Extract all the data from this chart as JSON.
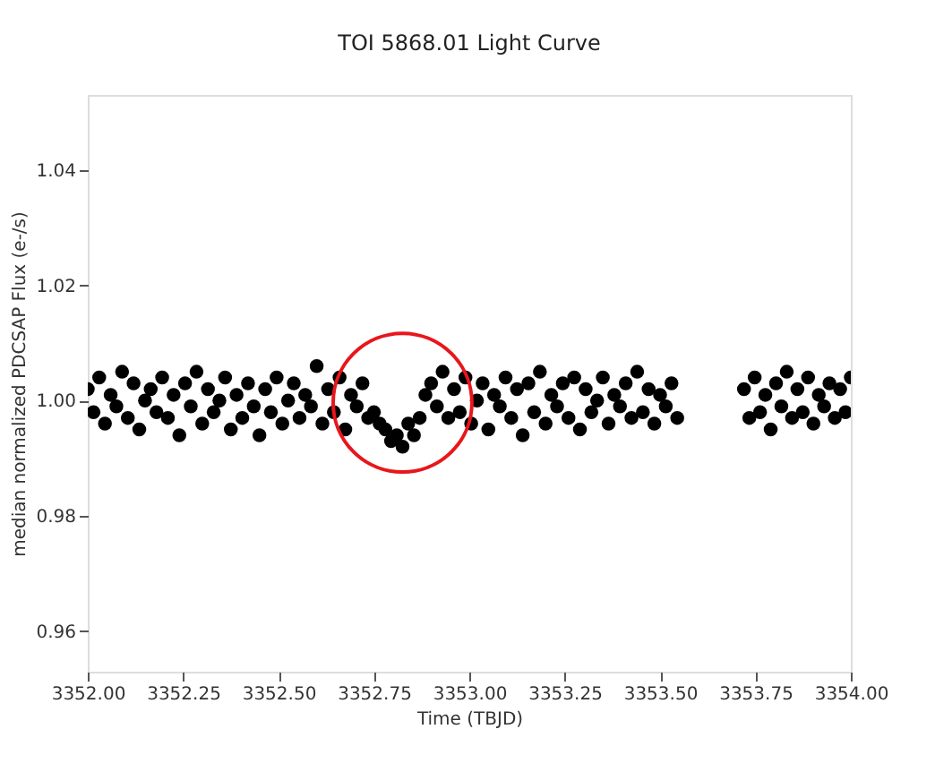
{
  "chart_data": {
    "type": "scatter",
    "title": "TOI 5868.01 Light Curve",
    "xlabel": "Time (TBJD)",
    "ylabel": "median normalized PDCSAP Flux (e-/s)",
    "series": [
      {
        "color": "#000000",
        "x": [
          3352.0,
          3352.015,
          3352.03,
          3352.045,
          3352.06,
          3352.075,
          3352.09,
          3352.105,
          3352.12,
          3352.135,
          3352.15,
          3352.165,
          3352.18,
          3352.195,
          3352.21,
          3352.225,
          3352.24,
          3352.255,
          3352.27,
          3352.285,
          3352.3,
          3352.315,
          3352.33,
          3352.345,
          3352.36,
          3352.375,
          3352.39,
          3352.405,
          3352.42,
          3352.435,
          3352.45,
          3352.465,
          3352.48,
          3352.495,
          3352.51,
          3352.525,
          3352.54,
          3352.555,
          3352.57,
          3352.585,
          3352.6,
          3352.615,
          3352.63,
          3352.645,
          3352.66,
          3352.675,
          3352.69,
          3352.705,
          3352.72,
          3352.735,
          3352.75,
          3352.765,
          3352.78,
          3352.795,
          3352.81,
          3352.825,
          3352.84,
          3352.855,
          3352.87,
          3352.885,
          3352.9,
          3352.915,
          3352.93,
          3352.945,
          3352.96,
          3352.975,
          3352.99,
          3353.005,
          3353.02,
          3353.035,
          3353.05,
          3353.065,
          3353.08,
          3353.095,
          3353.11,
          3353.125,
          3353.14,
          3353.155,
          3353.17,
          3353.185,
          3353.2,
          3353.215,
          3353.23,
          3353.245,
          3353.26,
          3353.275,
          3353.29,
          3353.305,
          3353.32,
          3353.335,
          3353.35,
          3353.365,
          3353.38,
          3353.395,
          3353.41,
          3353.425,
          3353.44,
          3353.455,
          3353.47,
          3353.485,
          3353.5,
          3353.515,
          3353.53,
          3353.545,
          3353.72,
          3353.734,
          3353.748,
          3353.762,
          3353.776,
          3353.79,
          3353.804,
          3353.818,
          3353.832,
          3353.846,
          3353.86,
          3353.874,
          3353.888,
          3353.902,
          3353.916,
          3353.93,
          3353.944,
          3353.958,
          3353.972,
          3353.986,
          3354.0
        ],
        "values": [
          1.002,
          0.998,
          1.004,
          0.996,
          1.001,
          0.999,
          1.005,
          0.997,
          1.003,
          0.995,
          1.0,
          1.002,
          0.998,
          1.004,
          0.997,
          1.001,
          0.994,
          1.003,
          0.999,
          1.005,
          0.996,
          1.002,
          0.998,
          1.0,
          1.004,
          0.995,
          1.001,
          0.997,
          1.003,
          0.999,
          0.994,
          1.002,
          0.998,
          1.004,
          0.996,
          1.0,
          1.003,
          0.997,
          1.001,
          0.999,
          1.006,
          0.996,
          1.002,
          0.998,
          1.004,
          0.995,
          1.001,
          0.999,
          1.003,
          0.997,
          0.998,
          0.996,
          0.995,
          0.993,
          0.994,
          0.992,
          0.996,
          0.994,
          0.997,
          1.001,
          1.003,
          0.999,
          1.005,
          0.997,
          1.002,
          0.998,
          1.004,
          0.996,
          1.0,
          1.003,
          0.995,
          1.001,
          0.999,
          1.004,
          0.997,
          1.002,
          0.994,
          1.003,
          0.998,
          1.005,
          0.996,
          1.001,
          0.999,
          1.003,
          0.997,
          1.004,
          0.995,
          1.002,
          0.998,
          1.0,
          1.004,
          0.996,
          1.001,
          0.999,
          1.003,
          0.997,
          1.005,
          0.998,
          1.002,
          0.996,
          1.001,
          0.999,
          1.003,
          0.997,
          1.002,
          0.997,
          1.004,
          0.998,
          1.001,
          0.995,
          1.003,
          0.999,
          1.005,
          0.997,
          1.002,
          0.998,
          1.004,
          0.996,
          1.001,
          0.999,
          1.003,
          0.997,
          1.002,
          0.998,
          1.004
        ]
      }
    ],
    "marker": "circle",
    "grid": false,
    "xlim": [
      3352.0,
      3354.0
    ],
    "xticks": [
      {
        "value": 3352.0,
        "label": "3352.00"
      },
      {
        "value": 3352.25,
        "label": "3352.25"
      },
      {
        "value": 3352.5,
        "label": "3352.50"
      },
      {
        "value": 3352.75,
        "label": "3352.75"
      },
      {
        "value": 3353.0,
        "label": "3353.00"
      },
      {
        "value": 3353.25,
        "label": "3353.25"
      },
      {
        "value": 3353.5,
        "label": "3353.50"
      },
      {
        "value": 3353.75,
        "label": "3353.75"
      },
      {
        "value": 3354.0,
        "label": "3354.00"
      }
    ],
    "ylim": [
      0.953,
      1.053
    ],
    "yticks": [
      0.96,
      0.98,
      {
        "value": 1.0,
        "label": "1.00"
      },
      1.02,
      1.04
    ]
  }
}
